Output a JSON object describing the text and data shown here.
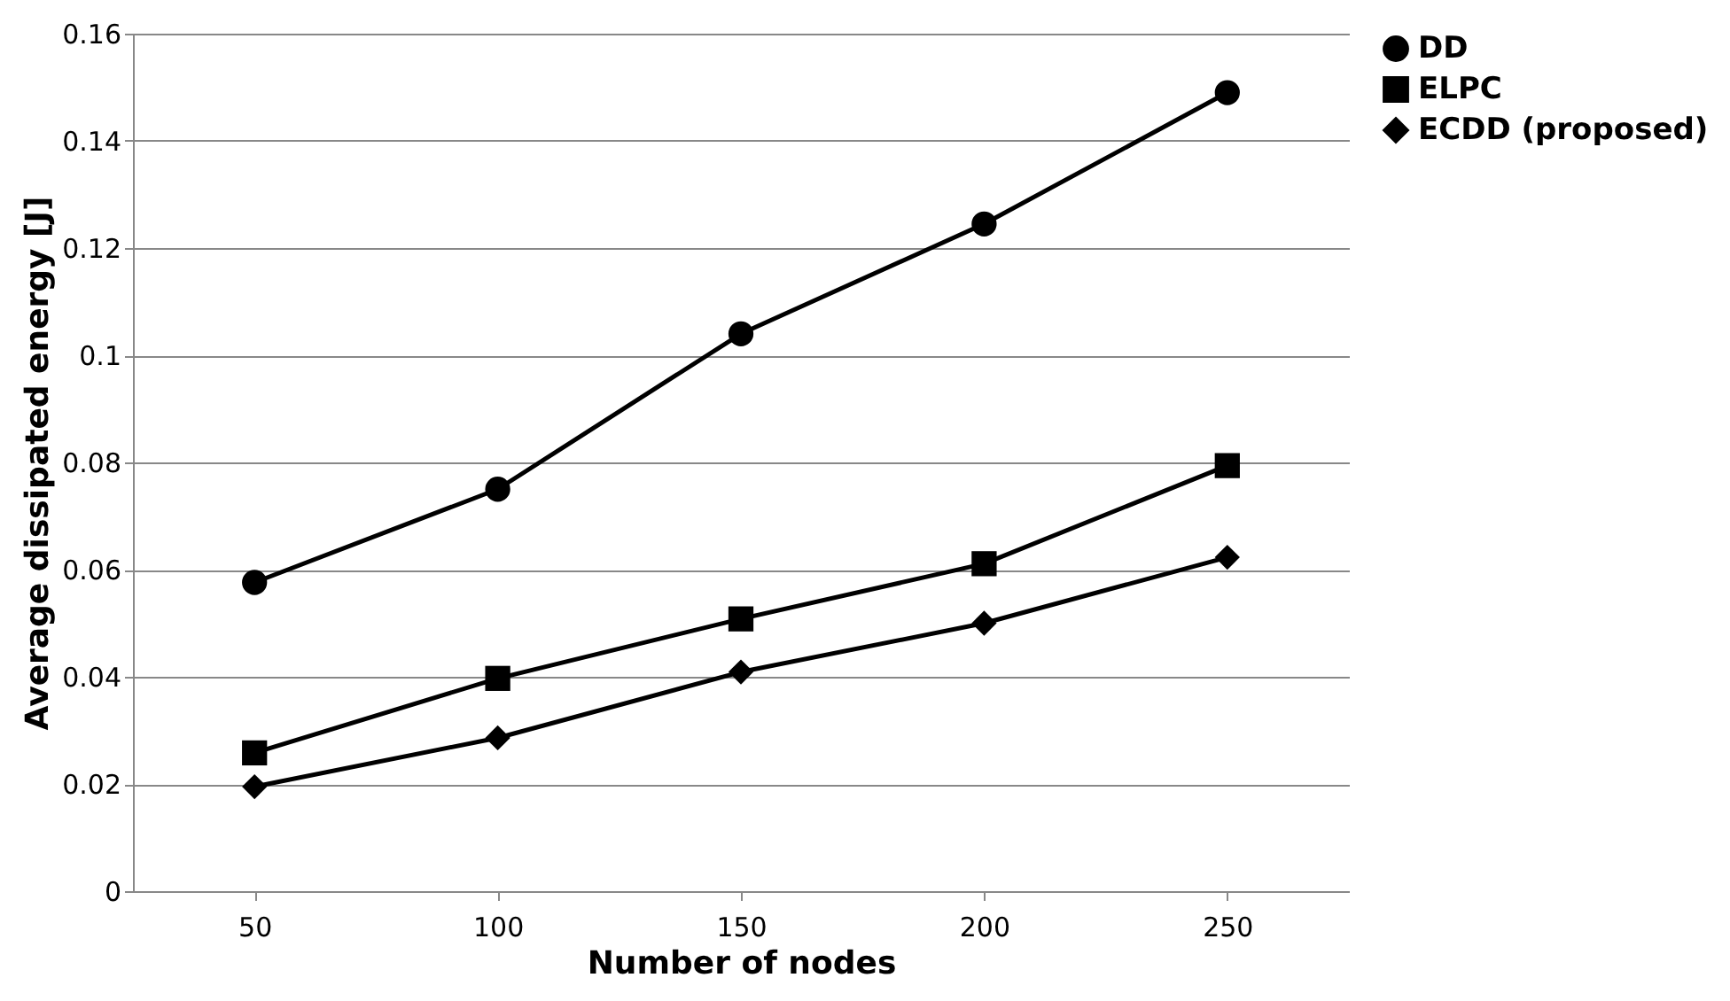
{
  "chart_data": {
    "type": "line",
    "xlabel": "Number of nodes",
    "ylabel": "Average dissipated energy [J]",
    "categories": [
      "50",
      "100",
      "150",
      "200",
      "250"
    ],
    "series": [
      {
        "name": "DD",
        "color": "#000000",
        "marker": "circle",
        "values": [
          0.0576,
          0.075,
          0.104,
          0.1245,
          0.149
        ]
      },
      {
        "name": "ELPC",
        "color": "#000000",
        "marker": "square",
        "values": [
          0.0258,
          0.0397,
          0.0508,
          0.0611,
          0.0794
        ]
      },
      {
        "name": "ECDD (proposed)",
        "color": "#000000",
        "marker": "diamond",
        "values": [
          0.0195,
          0.0286,
          0.0409,
          0.05,
          0.0623
        ]
      }
    ],
    "ylim": [
      0,
      0.16
    ],
    "yticks": [
      0,
      0.02,
      0.04,
      0.06,
      0.08,
      0.1,
      0.12,
      0.14,
      0.16
    ],
    "grid": "y",
    "legend": "right",
    "line_style": "solid"
  }
}
